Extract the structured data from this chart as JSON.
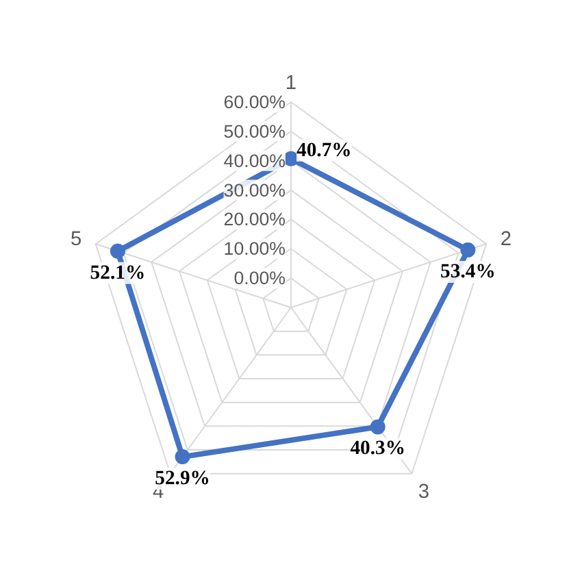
{
  "chart_data": {
    "type": "radar",
    "categories": [
      "1",
      "2",
      "3",
      "4",
      "5"
    ],
    "series": [
      {
        "color": "#4472c4",
        "values": [
          40.7,
          53.4,
          40.3,
          52.9,
          52.1
        ],
        "value_labels": [
          "40.7%",
          "53.4%",
          "40.3%",
          "52.9%",
          "52.1%"
        ]
      }
    ],
    "ylim": [
      -10,
      60
    ],
    "yticks": [
      {
        "value": 0,
        "label": "0.00%"
      },
      {
        "value": 10,
        "label": "10.00%"
      },
      {
        "value": 20,
        "label": "20.00%"
      },
      {
        "value": 30,
        "label": "30.00%"
      },
      {
        "value": 40,
        "label": "40.00%"
      },
      {
        "value": 50,
        "label": "50.00%"
      },
      {
        "value": 60,
        "label": "60.00%"
      }
    ],
    "grid": true,
    "marker": "circle",
    "line_style": "solid"
  }
}
